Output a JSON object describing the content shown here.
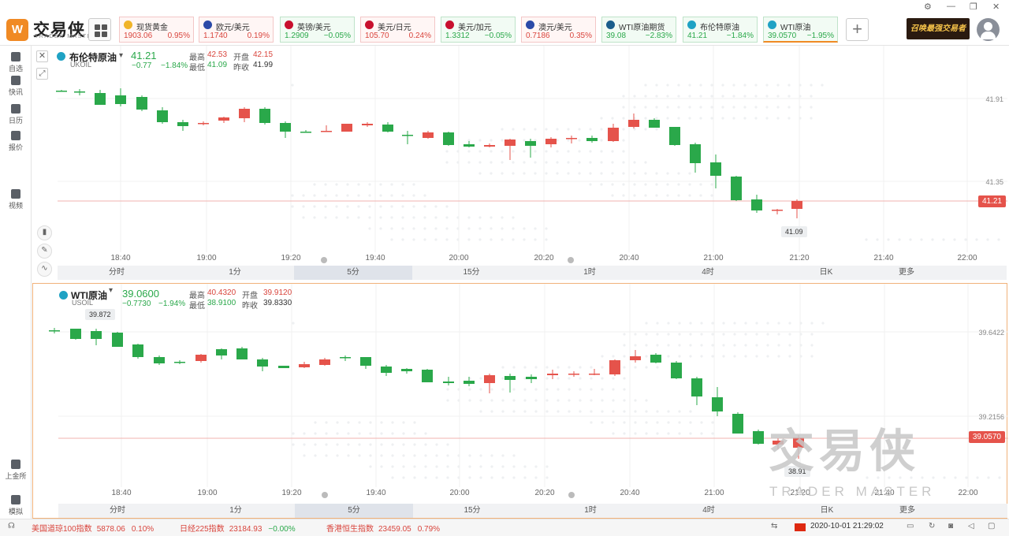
{
  "app": {
    "brand": "交易侠",
    "brand_sub": "TRADER MASTER",
    "promo": "召唤最强交易者"
  },
  "tickers": [
    {
      "name": "现货黄金",
      "price": "1903.06",
      "change": "0.95%",
      "trend": "up",
      "icon_color": "#f0b429"
    },
    {
      "name": "欧元/美元",
      "price": "1.1740",
      "change": "0.19%",
      "trend": "up",
      "icon_color": "#2b4aa8"
    },
    {
      "name": "英镑/美元",
      "price": "1.2909",
      "change": "−0.05%",
      "trend": "down",
      "icon_color": "#c8102e"
    },
    {
      "name": "美元/日元",
      "price": "105.70",
      "change": "0.24%",
      "trend": "up",
      "icon_color": "#c8102e"
    },
    {
      "name": "美元/加元",
      "price": "1.3312",
      "change": "−0.05%",
      "trend": "down",
      "icon_color": "#c8102e"
    },
    {
      "name": "澳元/美元",
      "price": "0.7186",
      "change": "0.35%",
      "trend": "up",
      "icon_color": "#2b4aa8"
    },
    {
      "name": "WTI原油期货",
      "price": "39.08",
      "change": "−2.83%",
      "trend": "down",
      "icon_color": "#1b5e8c"
    },
    {
      "name": "布伦特原油",
      "price": "41.21",
      "change": "−1.84%",
      "trend": "down",
      "icon_color": "#1fa2c4"
    },
    {
      "name": "WTI原油",
      "price": "39.0570",
      "change": "−1.95%",
      "trend": "down",
      "icon_color": "#1fa2c4",
      "active": true
    }
  ],
  "sidebar": [
    {
      "label": "自选",
      "icon": "bookmark-icon"
    },
    {
      "label": "快讯",
      "icon": "news-icon"
    },
    {
      "label": "日历",
      "icon": "calendar-icon"
    },
    {
      "label": "报价",
      "icon": "quote-icon"
    },
    {
      "label": "视频",
      "icon": "video-icon"
    },
    {
      "label": "上金所",
      "icon": "exchange-icon"
    },
    {
      "label": "模拟",
      "icon": "simulate-icon"
    }
  ],
  "panel_top": {
    "symbol": "布伦特原油",
    "code": "UKOIL",
    "price": "41.21",
    "change": "−0.77",
    "change_pct": "−1.84%",
    "high_label": "最高",
    "high": "42.53",
    "open_label": "开盘",
    "open": "42.15",
    "low_label": "最低",
    "low": "41.09",
    "prev_label": "昨收",
    "prev": "41.99",
    "price_tag": "41.21",
    "low_bubble": "41.09",
    "y_ticks": [
      "41.91",
      "41.35"
    ],
    "x_ticks": [
      "18:40",
      "19:00",
      "19:20",
      "19:40",
      "20:00",
      "20:20",
      "20:40",
      "21:00",
      "21:20",
      "21:40",
      "22:00"
    ]
  },
  "panel_bottom": {
    "symbol": "WTI原油",
    "code": "USOIL",
    "price": "39.0600",
    "change": "−0.7730",
    "change_pct": "−1.94%",
    "high_label": "最高",
    "high": "40.4320",
    "open_label": "开盘",
    "open": "39.9120",
    "low_label": "最低",
    "low": "38.9100",
    "prev_label": "昨收",
    "prev": "39.8330",
    "price_tag": "39.0570",
    "high_bubble": "39.872",
    "low_bubble": "38.91",
    "y_ticks": [
      "39.6422",
      "39.2156"
    ],
    "x_ticks": [
      "18:40",
      "19:00",
      "19:20",
      "19:40",
      "20:00",
      "20:20",
      "20:40",
      "21:00",
      "21:20",
      "21:40",
      "22:00"
    ]
  },
  "periods": [
    "分时",
    "1分",
    "5分",
    "15分",
    "1时",
    "4时",
    "日K",
    "更多"
  ],
  "active_period": "5分",
  "watermark": {
    "main": "交易侠",
    "sub": "TRADER MASTER"
  },
  "statusbar": {
    "indices": [
      {
        "name": "美国道琼100指数",
        "value": "5878.06",
        "change": "0.10%",
        "trend": "up"
      },
      {
        "name": "日经225指数",
        "value": "23184.93",
        "change": "−0.00%",
        "trend": "down"
      },
      {
        "name": "香港恒生指数",
        "value": "23459.05",
        "change": "0.79%",
        "trend": "up"
      }
    ],
    "datetime": "2020-10-01 21:29:02"
  },
  "colors": {
    "up": "#e5534b",
    "down": "#2aa84a",
    "accent": "#f08a24"
  }
}
